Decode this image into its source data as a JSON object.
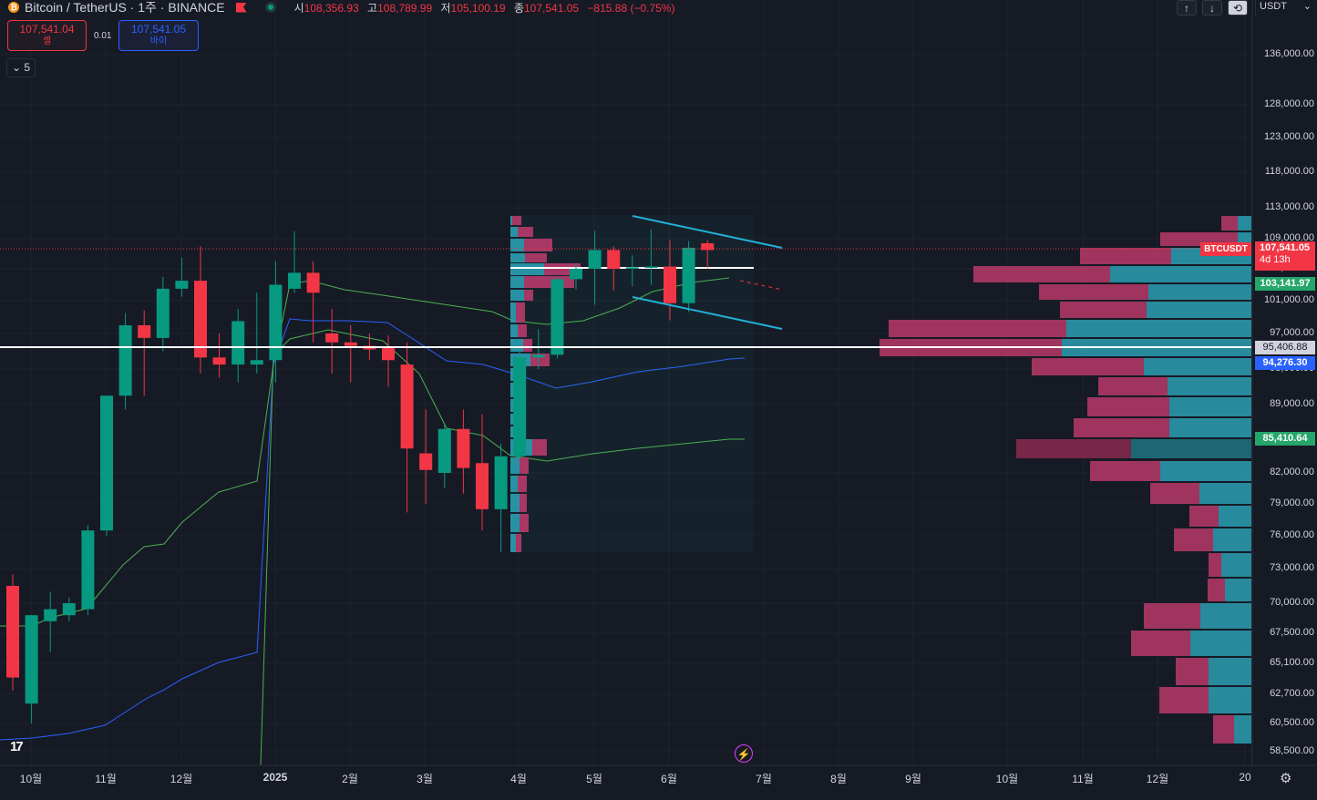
{
  "header": {
    "symbol": "Bitcoin / TetherUS · 1주 · BINANCE",
    "open_label": "시",
    "open": "108,356.93",
    "high_label": "고",
    "high": "108,789.99",
    "low_label": "저",
    "low": "105,100.19",
    "close_label": "종",
    "close": "107,541.05",
    "change": "−815.88 (−0.75%)"
  },
  "trade": {
    "sell_price": "107,541.04",
    "sell_label": "셀",
    "spread": "0.01",
    "buy_price": "107,541.05",
    "buy_label": "바이"
  },
  "indicator_toggle": "5",
  "toolbar": {
    "up_icon": "↑",
    "down_icon": "↓",
    "currency": "USDT"
  },
  "price_axis": [
    "136,000.00",
    "128,000.00",
    "123,000.00",
    "118,000.00",
    "113,000.00",
    "109,000.00",
    "105,000.00",
    "101,000.00",
    "97,000.00",
    "93,000.00",
    "89,000.00",
    "82,000.00",
    "79,000.00",
    "76,000.00",
    "73,000.00",
    "70,000.00",
    "67,500.00",
    "65,100.00",
    "62,700.00",
    "60,500.00",
    "58,500.00"
  ],
  "price_tags": {
    "current_symbol": "BTCUSDT",
    "current_price": "107,541.05",
    "countdown": "4d 13h",
    "green_1": "103,141.97",
    "white_line": "95,406.88",
    "blue_line": "94,276.30",
    "green_2": "85,410.64"
  },
  "time_axis": [
    "10월",
    "11월",
    "12월",
    "2025",
    "2월",
    "3월",
    "4월",
    "5월",
    "6월",
    "7월",
    "8월",
    "9월",
    "10월",
    "11월",
    "12월",
    "20"
  ],
  "colors": {
    "up": "#089981",
    "down": "#f23645",
    "bg": "#161a25",
    "channel": "#22b0d9",
    "vp_up": "#2a9fb3",
    "vp_down": "#b73a6a",
    "ma_green": "#4caf50",
    "ma_blue": "#2962ff"
  },
  "chart_data": {
    "type": "candlestick",
    "interval": "1W",
    "candles": [
      {
        "o": 71500,
        "h": 72500,
        "l": 63000,
        "c": 64000
      },
      {
        "o": 62000,
        "h": 69000,
        "l": 60500,
        "c": 69000
      },
      {
        "o": 68500,
        "h": 71000,
        "l": 66000,
        "c": 69500
      },
      {
        "o": 69000,
        "h": 70500,
        "l": 68500,
        "c": 70000
      },
      {
        "o": 69500,
        "h": 77000,
        "l": 69000,
        "c": 76500
      },
      {
        "o": 76500,
        "h": 90000,
        "l": 76000,
        "c": 90000
      },
      {
        "o": 90000,
        "h": 99500,
        "l": 88500,
        "c": 98000
      },
      {
        "o": 98000,
        "h": 99800,
        "l": 90000,
        "c": 96500
      },
      {
        "o": 96500,
        "h": 104000,
        "l": 95000,
        "c": 102500
      },
      {
        "o": 102500,
        "h": 106500,
        "l": 101500,
        "c": 103500
      },
      {
        "o": 103500,
        "h": 108000,
        "l": 92500,
        "c": 94300
      },
      {
        "o": 94300,
        "h": 97000,
        "l": 92000,
        "c": 93500
      },
      {
        "o": 93500,
        "h": 100000,
        "l": 91500,
        "c": 98500
      },
      {
        "o": 93500,
        "h": 102000,
        "l": 92500,
        "c": 94000
      },
      {
        "o": 94000,
        "h": 106000,
        "l": 91500,
        "c": 103000
      },
      {
        "o": 102500,
        "h": 110000,
        "l": 102000,
        "c": 104500
      },
      {
        "o": 104500,
        "h": 106000,
        "l": 96000,
        "c": 102000
      },
      {
        "o": 97000,
        "h": 100000,
        "l": 92500,
        "c": 96000
      },
      {
        "o": 96000,
        "h": 98000,
        "l": 91500,
        "c": 95600
      },
      {
        "o": 95600,
        "h": 97000,
        "l": 94000,
        "c": 95200
      },
      {
        "o": 95500,
        "h": 96800,
        "l": 91000,
        "c": 94000
      },
      {
        "o": 93500,
        "h": 96000,
        "l": 78200,
        "c": 84500
      },
      {
        "o": 84000,
        "h": 88500,
        "l": 79000,
        "c": 82300
      },
      {
        "o": 82000,
        "h": 87000,
        "l": 80500,
        "c": 86500
      },
      {
        "o": 86500,
        "h": 88500,
        "l": 80000,
        "c": 82500
      },
      {
        "o": 83000,
        "h": 88000,
        "l": 76500,
        "c": 78500
      },
      {
        "o": 78500,
        "h": 85000,
        "l": 74500,
        "c": 83700
      },
      {
        "o": 83700,
        "h": 95500,
        "l": 83500,
        "c": 94300
      },
      {
        "o": 94300,
        "h": 97500,
        "l": 93000,
        "c": 94600
      },
      {
        "o": 94600,
        "h": 104000,
        "l": 94200,
        "c": 103700
      },
      {
        "o": 103700,
        "h": 105700,
        "l": 102400,
        "c": 105000
      },
      {
        "o": 105000,
        "h": 110000,
        "l": 100500,
        "c": 107500
      },
      {
        "o": 107500,
        "h": 108000,
        "l": 102300,
        "c": 105000
      },
      {
        "o": 105000,
        "h": 106800,
        "l": 102800,
        "c": 105200
      },
      {
        "o": 105200,
        "h": 110200,
        "l": 103000,
        "c": 105300
      },
      {
        "o": 105300,
        "h": 108800,
        "l": 98600,
        "c": 100700
      },
      {
        "o": 100700,
        "h": 108700,
        "l": 99600,
        "c": 107800
      },
      {
        "o": 108400,
        "h": 108800,
        "l": 105100,
        "c": 107500
      }
    ]
  }
}
